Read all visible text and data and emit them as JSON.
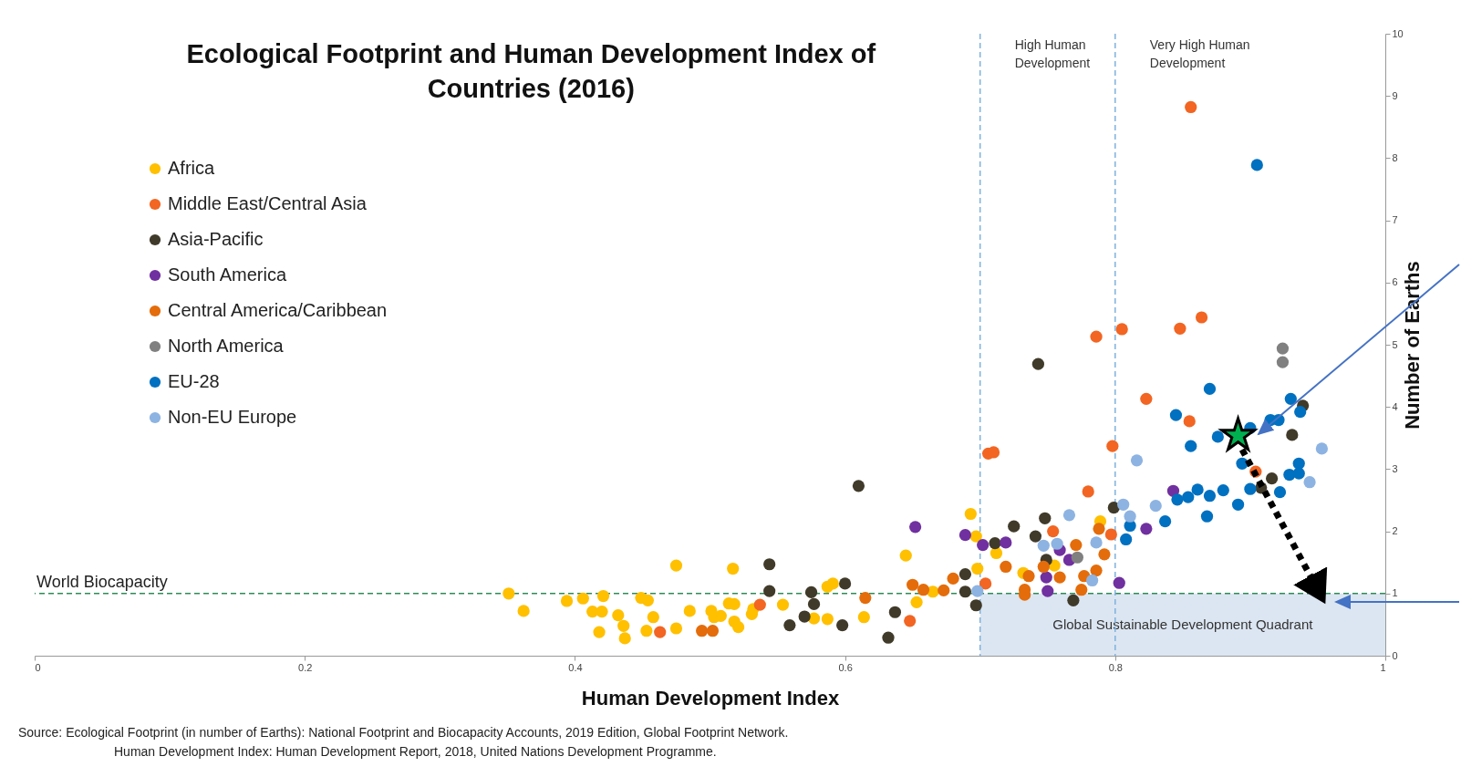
{
  "chart_data": {
    "type": "scatter",
    "title": "Ecological Footprint and Human Development Index of Countries (2016)",
    "xlabel": "Human Development Index",
    "ylabel": "Number of Earths",
    "xlim": [
      0,
      1
    ],
    "xticks": [
      0,
      0.2,
      0.4,
      0.6,
      0.8,
      1
    ],
    "ylim": [
      0,
      10
    ],
    "yticks": [
      0,
      1,
      2,
      3,
      4,
      5,
      6,
      7,
      8,
      9,
      10
    ],
    "legend": "top left",
    "marker": "circle",
    "series": [
      {
        "name": "Africa",
        "color": "#ffc000",
        "x": [
          0.351,
          0.362,
          0.394,
          0.406,
          0.421,
          0.413,
          0.42,
          0.432,
          0.436,
          0.437,
          0.418,
          0.449,
          0.454,
          0.458,
          0.453,
          0.475,
          0.475,
          0.485,
          0.501,
          0.503,
          0.508,
          0.514,
          0.518,
          0.517,
          0.518,
          0.521,
          0.531,
          0.532,
          0.554,
          0.577,
          0.587,
          0.587,
          0.591,
          0.614,
          0.645,
          0.653,
          0.665,
          0.693,
          0.697,
          0.712,
          0.698,
          0.732,
          0.755,
          0.789
        ],
        "values": [
          1.0,
          0.72,
          0.88,
          0.92,
          0.96,
          0.71,
          0.71,
          0.65,
          0.48,
          0.28,
          0.38,
          0.93,
          0.89,
          0.62,
          0.4,
          0.44,
          1.45,
          0.72,
          0.72,
          0.62,
          0.64,
          0.84,
          0.83,
          1.4,
          0.55,
          0.46,
          0.67,
          0.75,
          0.82,
          0.6,
          0.59,
          1.11,
          1.16,
          0.62,
          1.61,
          0.86,
          1.03,
          2.28,
          1.92,
          1.65,
          1.4,
          1.33,
          1.45,
          2.16
        ]
      },
      {
        "name": "Middle East/Central Asia",
        "color": "#f26522",
        "x": [
          0.856,
          0.864,
          0.848,
          0.805,
          0.786,
          0.823,
          0.855,
          0.798,
          0.706,
          0.71,
          0.78,
          0.904,
          0.463,
          0.537,
          0.648,
          0.704,
          0.754,
          0.797
        ],
        "values": [
          8.82,
          5.44,
          5.26,
          5.25,
          5.13,
          4.13,
          3.77,
          3.37,
          3.25,
          3.27,
          2.64,
          2.96,
          0.38,
          0.82,
          0.56,
          1.16,
          2.0,
          1.95
        ]
      },
      {
        "name": "Asia-Pacific",
        "color": "#403a2a",
        "x": [
          0.544,
          0.544,
          0.559,
          0.57,
          0.575,
          0.577,
          0.598,
          0.6,
          0.61,
          0.632,
          0.637,
          0.689,
          0.689,
          0.697,
          0.711,
          0.725,
          0.741,
          0.743,
          0.748,
          0.749,
          0.769,
          0.799,
          0.939,
          0.931,
          0.916,
          0.908
        ],
        "values": [
          1.47,
          1.04,
          0.49,
          0.63,
          1.02,
          0.83,
          0.49,
          1.16,
          2.73,
          0.29,
          0.7,
          1.31,
          1.03,
          0.81,
          1.81,
          2.08,
          1.92,
          4.69,
          2.21,
          1.54,
          0.89,
          2.38,
          4.02,
          3.55,
          2.85,
          2.7
        ]
      },
      {
        "name": "South America",
        "color": "#7030a0",
        "x": [
          0.652,
          0.689,
          0.702,
          0.719,
          0.759,
          0.749,
          0.75,
          0.766,
          0.803,
          0.823,
          0.843
        ],
        "values": [
          2.07,
          1.94,
          1.78,
          1.82,
          1.7,
          1.26,
          1.04,
          1.54,
          1.17,
          2.04,
          2.65
        ]
      },
      {
        "name": "Central America/Caribbean",
        "color": "#e46c0a",
        "x": [
          0.494,
          0.502,
          0.615,
          0.65,
          0.658,
          0.673,
          0.68,
          0.719,
          0.733,
          0.733,
          0.736,
          0.747,
          0.759,
          0.771,
          0.775,
          0.777,
          0.786,
          0.788,
          0.792
        ],
        "values": [
          0.4,
          0.4,
          0.93,
          1.14,
          1.06,
          1.05,
          1.24,
          1.43,
          1.06,
          0.98,
          1.28,
          1.43,
          1.26,
          1.78,
          1.06,
          1.28,
          1.37,
          2.04,
          1.63
        ]
      },
      {
        "name": "North America",
        "color": "#808080",
        "x": [
          0.772,
          0.924,
          0.924
        ],
        "values": [
          1.58,
          4.94,
          4.72
        ]
      },
      {
        "name": "EU-28",
        "color": "#0070c0",
        "x": [
          0.811,
          0.808,
          0.846,
          0.845,
          0.905,
          0.87,
          0.93,
          0.937,
          0.915,
          0.921,
          0.9,
          0.876,
          0.856,
          0.894,
          0.936,
          0.929,
          0.936,
          0.9,
          0.922,
          0.891,
          0.88,
          0.87,
          0.861,
          0.854,
          0.868,
          0.837
        ],
        "values": [
          2.09,
          1.87,
          2.51,
          3.87,
          7.89,
          4.29,
          4.13,
          3.92,
          3.79,
          3.79,
          3.66,
          3.52,
          3.37,
          3.09,
          3.09,
          2.91,
          2.93,
          2.68,
          2.63,
          2.43,
          2.66,
          2.57,
          2.67,
          2.55,
          2.24,
          2.16
        ]
      },
      {
        "name": "Non-EU Europe",
        "color": "#8db3e2",
        "x": [
          0.698,
          0.747,
          0.757,
          0.766,
          0.783,
          0.786,
          0.806,
          0.811,
          0.816,
          0.83,
          0.953,
          0.944
        ],
        "values": [
          1.04,
          1.77,
          1.8,
          2.26,
          1.21,
          1.82,
          2.43,
          2.24,
          3.14,
          2.41,
          3.33,
          2.79
        ]
      },
      {
        "color": "#00b050",
        "marker": "star",
        "x": [
          0.891
        ],
        "values": [
          3.54
        ]
      }
    ],
    "ref_lines": [
      {
        "axis": "y",
        "value": 1,
        "label": "World Biocapacity",
        "color": "#2e8b57",
        "line_style": "dashed"
      },
      {
        "axis": "x",
        "value": 0.7,
        "label": "High Human Development",
        "color": "#7fb2dc",
        "line_style": "dashed"
      },
      {
        "axis": "x",
        "value": 0.8,
        "label": "Very High Human Development",
        "color": "#7fb2dc",
        "line_style": "dashed"
      }
    ],
    "bands": [
      {
        "axis": "x",
        "from": 0.7,
        "to": 1,
        "label": "Global Sustainable Development Quadrant",
        "color": "#dce6f2"
      }
    ],
    "annotations": [
      "Source: Ecological Footprint (in number of Earths): National Footprint and Biocapacity Accounts, 2019 Edition, Global Footprint Network.",
      "Human Development Index: Human Development Report, 2018, United Nations Development Programme."
    ]
  }
}
